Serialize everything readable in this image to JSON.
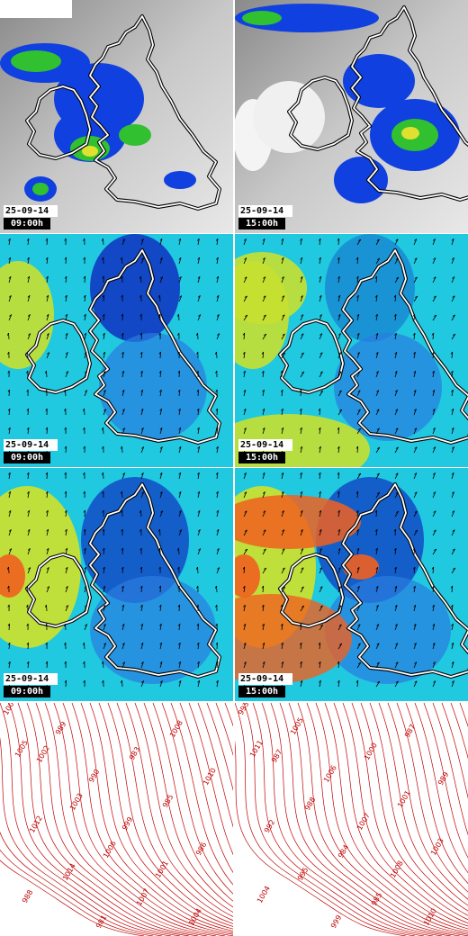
{
  "maps": [
    {
      "kind": "precipitation",
      "date": "25-09-14",
      "time": "09:00h",
      "variant": 0
    },
    {
      "kind": "precipitation",
      "date": "25-09-14",
      "time": "15:00h",
      "variant": 1
    },
    {
      "kind": "wind-low",
      "date": "25-09-14",
      "time": "09:00h",
      "variant": 0
    },
    {
      "kind": "wind-low",
      "date": "25-09-14",
      "time": "15:00h",
      "variant": 1
    },
    {
      "kind": "wind-high",
      "date": "25-09-14",
      "time": "09:00h",
      "variant": 0
    },
    {
      "kind": "wind-high",
      "date": "25-09-14",
      "time": "15:00h",
      "variant": 1
    }
  ],
  "isobar_labels_left": [
    "1000",
    "1002",
    "1003",
    "1006",
    "1007",
    "1008",
    "1010",
    "1012",
    "1014",
    "981",
    "983",
    "985",
    "986",
    "988",
    "989",
    "990",
    "999",
    "1001",
    "1004",
    "1005"
  ],
  "isobar_labels_right": [
    "993",
    "987",
    "988",
    "984",
    "985",
    "987",
    "989",
    "992",
    "995",
    "999",
    "1000",
    "1001",
    "1003",
    "1004",
    "1005",
    "1006",
    "1007",
    "1008",
    "1010",
    "1011"
  ],
  "colors": {
    "coast": "#ffffff",
    "coast_outline": "#000000",
    "isobar": "#c00000",
    "rain_heavy": "#e0e030",
    "rain_mid": "#30c030",
    "rain_light": "#1040e0",
    "wind_calm": "#1030c0",
    "wind_mid": "#20c8e0",
    "wind_strong": "#c8e030",
    "wind_gale": "#f06020"
  }
}
